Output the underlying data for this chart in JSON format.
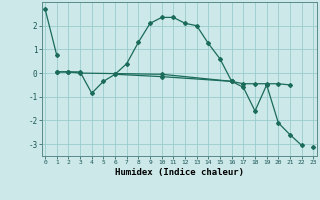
{
  "xlabel": "Humidex (Indice chaleur)",
  "bg_color": "#cce8e8",
  "grid_color": "#99cccc",
  "line_color": "#1a6b5a",
  "series1_x": [
    0,
    1
  ],
  "series1_y": [
    2.7,
    0.75
  ],
  "series2_x": [
    1,
    2,
    3,
    4,
    5,
    6,
    7,
    8,
    9,
    10,
    11,
    12,
    13,
    14,
    15,
    16
  ],
  "series2_y": [
    0.05,
    0.05,
    0.05,
    -0.85,
    -0.35,
    -0.05,
    0.4,
    1.3,
    2.1,
    2.35,
    2.35,
    2.1,
    2.0,
    1.25,
    0.6,
    -0.35
  ],
  "series3_x": [
    1,
    2,
    3,
    10,
    16,
    17,
    18,
    19,
    20,
    21
  ],
  "series3_y": [
    0.05,
    0.05,
    0.0,
    -0.05,
    -0.35,
    -0.45,
    -0.45,
    -0.45,
    -0.45,
    -0.5
  ],
  "series4_x": [
    6,
    10,
    16,
    17,
    18,
    19,
    20,
    21,
    22
  ],
  "series4_y": [
    -0.05,
    -0.15,
    -0.35,
    -0.6,
    -1.6,
    -0.5,
    -2.1,
    -2.6,
    -3.05
  ],
  "series5_x": [
    23
  ],
  "series5_y": [
    -3.1
  ],
  "ylim": [
    -3.5,
    3.0
  ],
  "yticks": [
    -3,
    -2,
    -1,
    0,
    1,
    2
  ],
  "xticks": [
    0,
    1,
    2,
    3,
    4,
    5,
    6,
    7,
    8,
    9,
    10,
    11,
    12,
    13,
    14,
    15,
    16,
    17,
    18,
    19,
    20,
    21,
    22,
    23
  ]
}
